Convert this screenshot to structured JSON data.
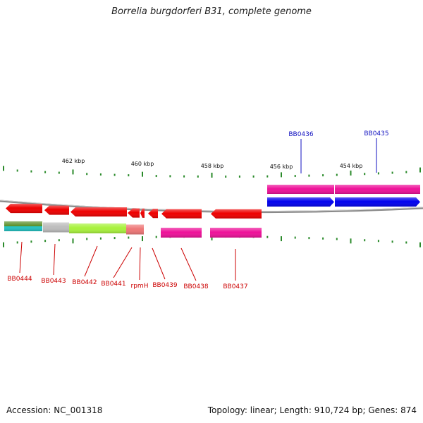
{
  "title": "Borrelia burgdorferi B31, complete genome",
  "footer": {
    "accession": "Accession: NC_001318",
    "summary": "Topology: linear; Length: 910,724 bp; Genes: 874"
  },
  "colors": {
    "forward_label": "#1010c0",
    "reverse_label": "#cc0000",
    "ruler_tick": "#2a8a2a",
    "backbone": "#8a8a8a"
  },
  "ruler": [
    "462 kbp",
    "460 kbp",
    "458 kbp",
    "456 kbp",
    "454 kbp"
  ],
  "forward_genes": [
    {
      "label": "BB0436",
      "arrow": "#0000ee",
      "bar": "#ee1199"
    },
    {
      "label": "BB0435",
      "arrow": "#0000ee",
      "bar": "#ee1199"
    }
  ],
  "reverse_genes": [
    {
      "label": "BB0444",
      "arrow": "#ee0000",
      "bar": "#5a8f2a",
      "bar2": "#22c4c4"
    },
    {
      "label": "BB0443",
      "arrow": "#ee0000",
      "bar": "#bdbdbd"
    },
    {
      "label": "BB0442",
      "arrow": "#ee0000",
      "bar": "#a8f23c"
    },
    {
      "label": "BB0441",
      "arrow": "#ee0000",
      "bar": "#ee7777"
    },
    {
      "label": "rpmH",
      "arrow": "#ee0000"
    },
    {
      "label": "BB0439",
      "arrow": "#ee0000",
      "bar": "#ee1199"
    },
    {
      "label": "BB0438",
      "arrow": "#ee0000",
      "bar": "#ee1199"
    },
    {
      "label": "BB0437",
      "arrow": "#ee0000",
      "bar": "#ee1199"
    }
  ]
}
